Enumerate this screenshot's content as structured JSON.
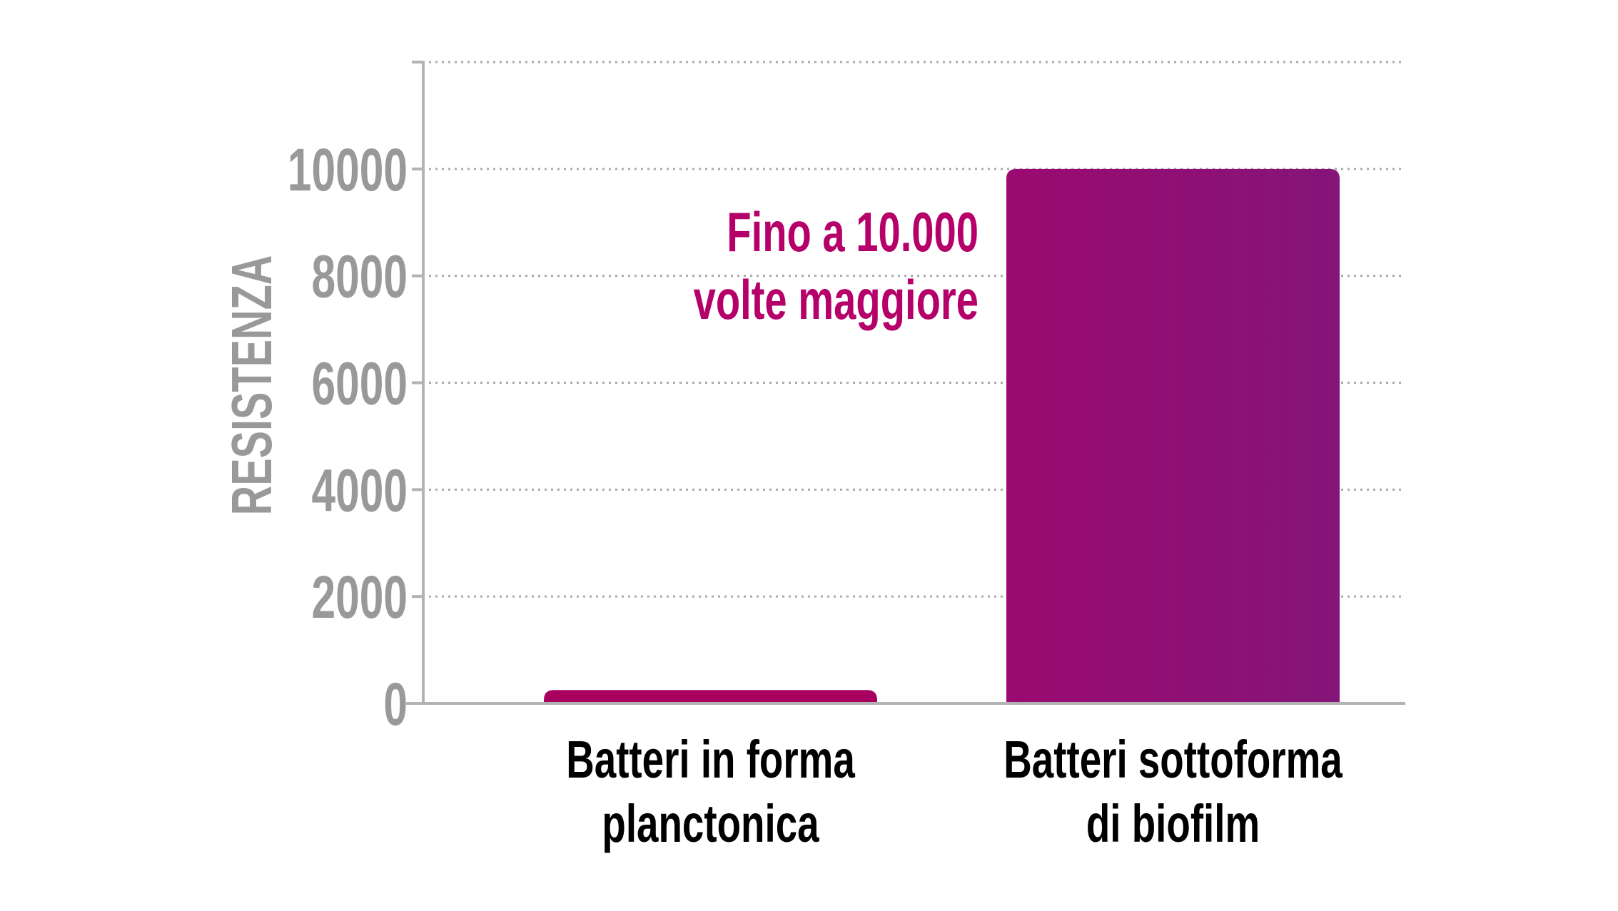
{
  "chart_data": {
    "type": "bar",
    "title": "",
    "xlabel": "",
    "ylabel": "RESISTENZA",
    "ylim": [
      0,
      12000
    ],
    "yticks": [
      0,
      2000,
      4000,
      6000,
      8000,
      10000
    ],
    "yticks_labels": [
      "0",
      "2000",
      "4000",
      "6000",
      "8000",
      "10000"
    ],
    "grid": true,
    "categories": [
      [
        "Batteri in forma",
        "planctonica"
      ],
      [
        "Batteri sottoforma",
        "di biofilm"
      ]
    ],
    "values": [
      250,
      10000
    ],
    "annotation": [
      "Fino a 10.000",
      "volte maggiore"
    ],
    "colors": {
      "bar1": "#a8005e",
      "bar2_start": "#9a0a70",
      "bar2_end": "#851578",
      "annotation": "#b5006a",
      "axis": "#b3b3b3",
      "tick_label": "#999999",
      "category_label": "#000000"
    }
  }
}
